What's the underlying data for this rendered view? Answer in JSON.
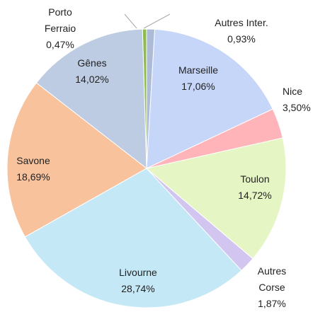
{
  "chart_data": {
    "type": "pie",
    "categories": [
      "Autres Inter.",
      "Marseille",
      "Nice",
      "Toulon",
      "Autres Corse",
      "Livourne",
      "Savone",
      "Gênes",
      "Porto Ferraio"
    ],
    "values": [
      0.93,
      17.06,
      3.5,
      14.72,
      1.87,
      28.74,
      18.69,
      14.02,
      0.47
    ],
    "value_labels": [
      "0,93%",
      "17,06%",
      "3,50%",
      "14,72%",
      "1,87%",
      "28,74%",
      "18,69%",
      "14,02%",
      "0,47%"
    ],
    "colors": [
      "#aebbd8",
      "#c6d6f8",
      "#ffb4b9",
      "#e5f5c3",
      "#d2c5ef",
      "#c5e8f7",
      "#f8c29d",
      "#bdcce2",
      "#8fbd4c"
    ]
  }
}
